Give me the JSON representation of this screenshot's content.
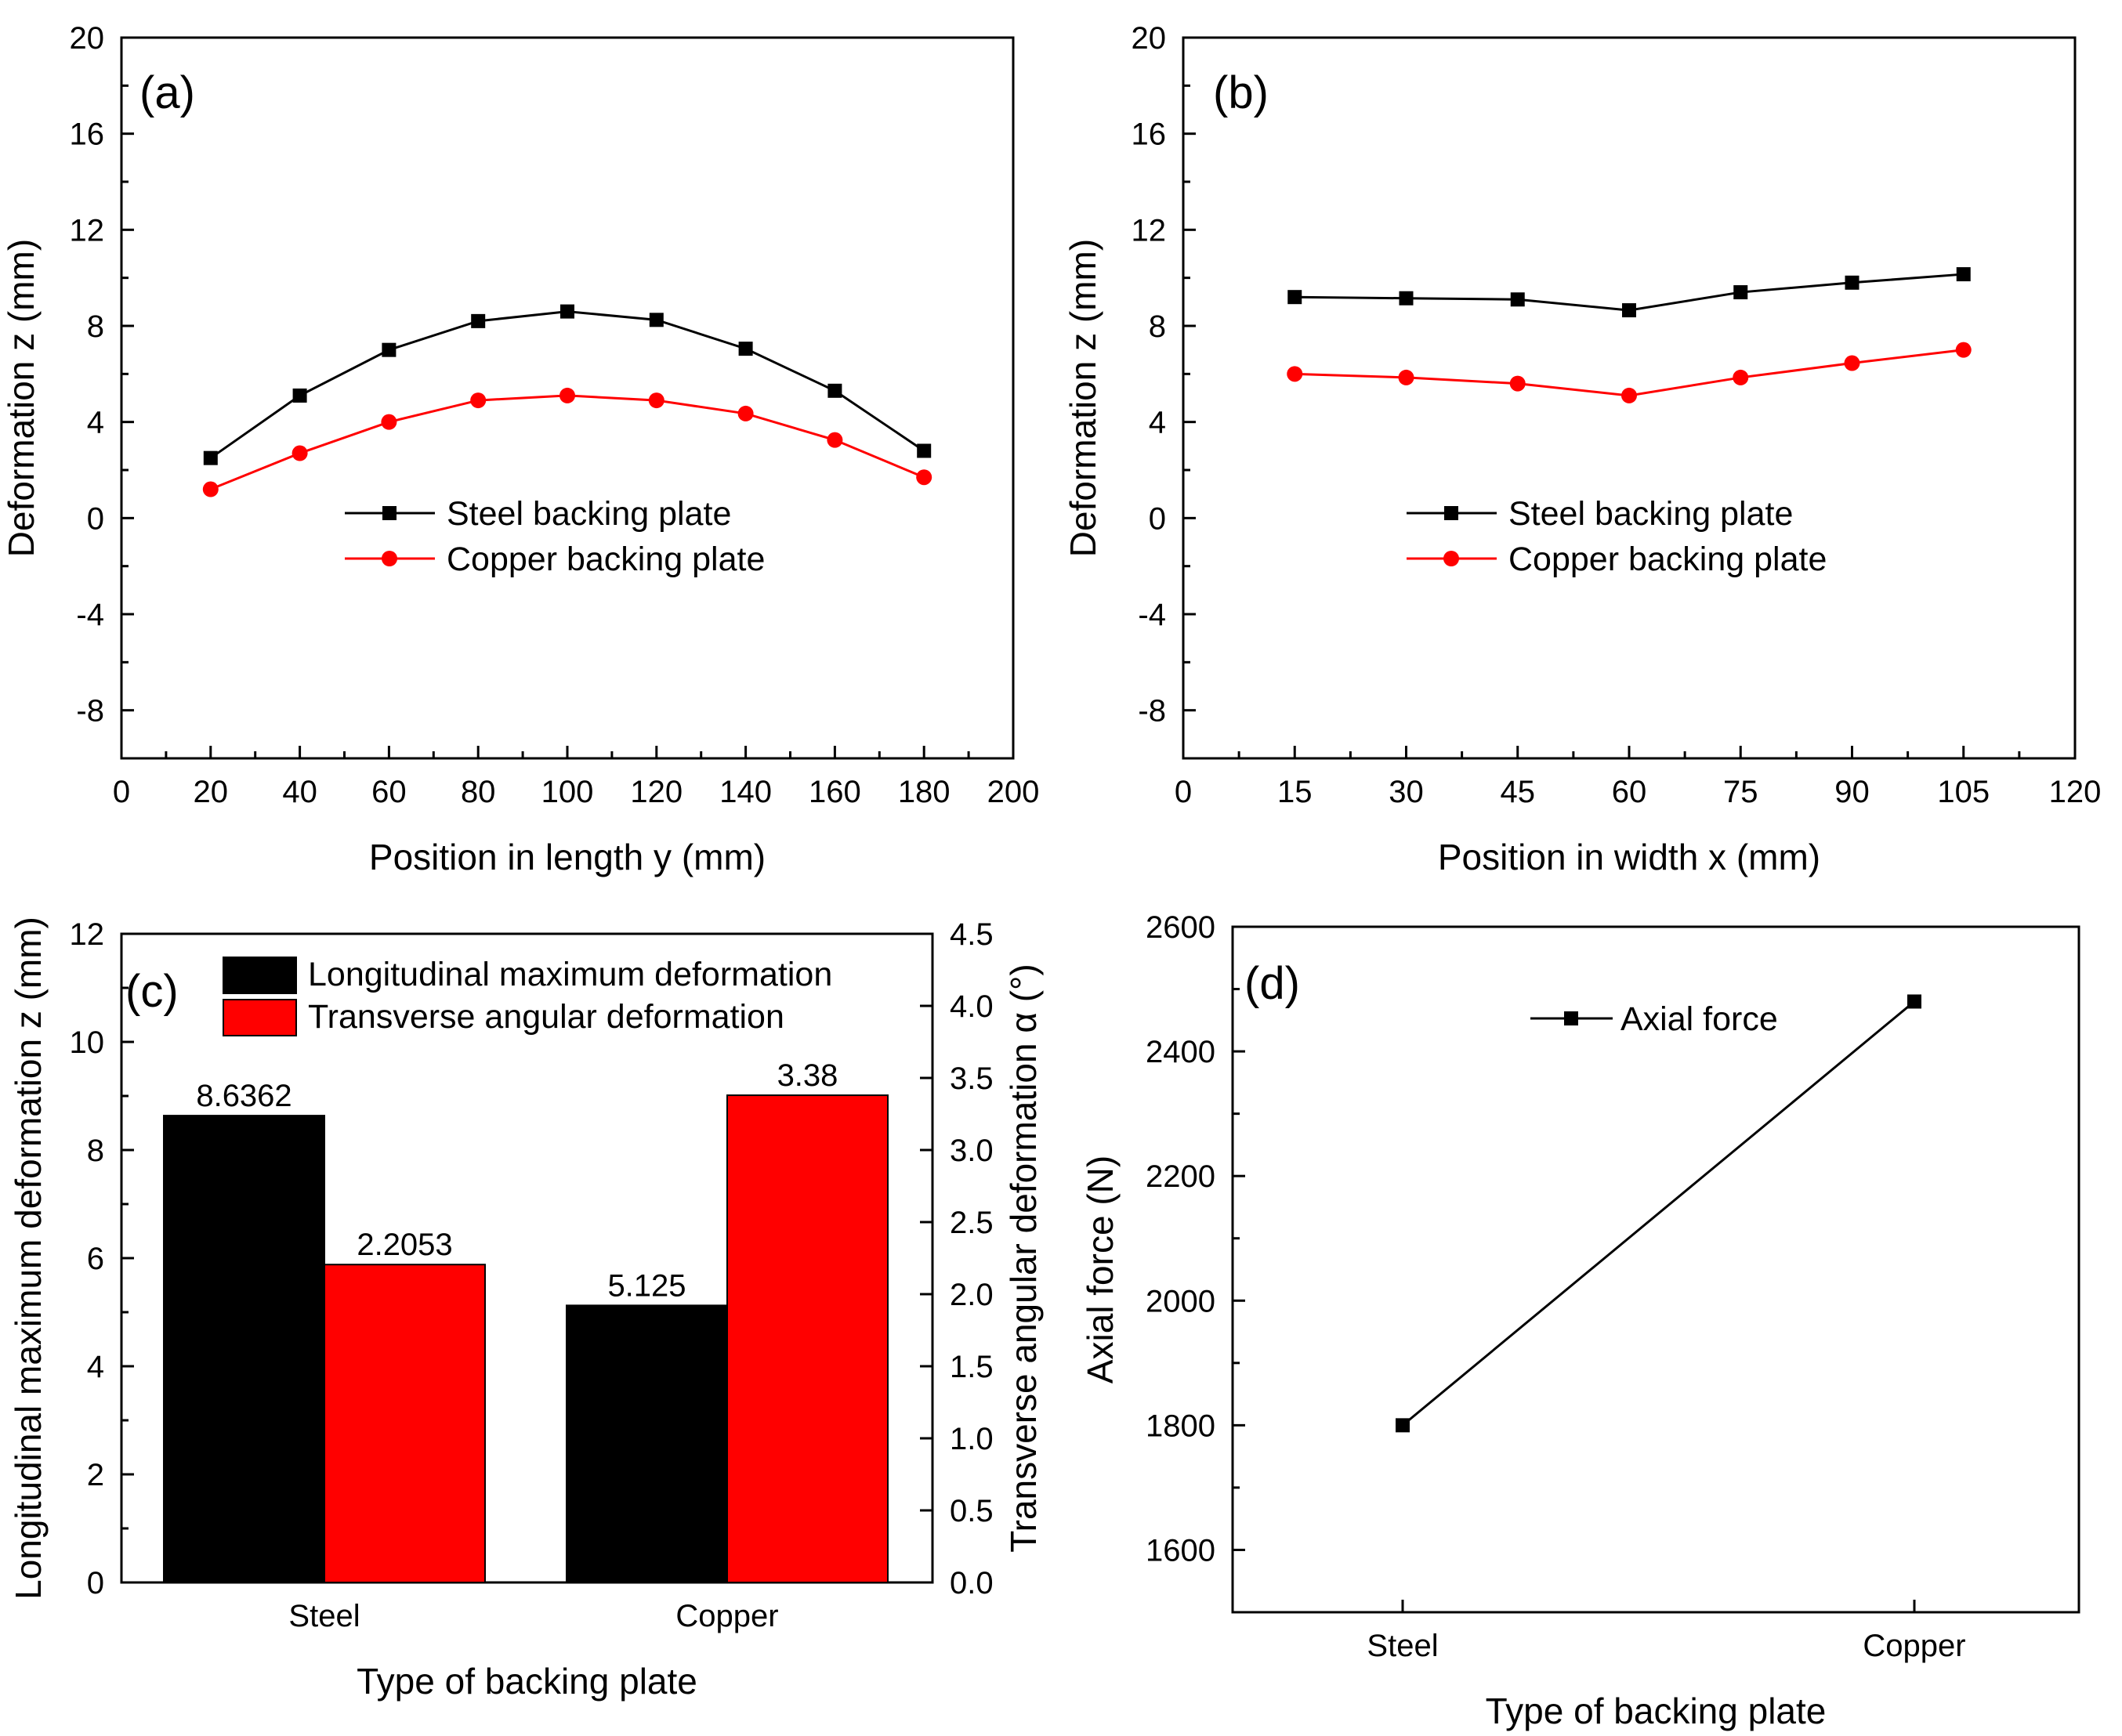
{
  "chart_data": [
    {
      "panel": "(a)",
      "type": "line",
      "xlabel": "Position in length y (mm)",
      "ylabel": "Deformation z (mm)",
      "xlim": [
        0,
        200
      ],
      "ylim": [
        -10,
        20
      ],
      "xticks": [
        0,
        20,
        40,
        60,
        80,
        100,
        120,
        140,
        160,
        180,
        200
      ],
      "yticks": [
        -8,
        -4,
        0,
        4,
        8,
        12,
        16,
        20
      ],
      "grid": false,
      "legend_position": "center",
      "series": [
        {
          "name": "Steel backing plate",
          "color": "#000000",
          "marker": "square",
          "x": [
            20,
            40,
            60,
            80,
            100,
            120,
            140,
            160,
            180
          ],
          "y": [
            2.5,
            5.1,
            7.0,
            8.2,
            8.6,
            8.25,
            7.05,
            5.3,
            2.8
          ]
        },
        {
          "name": "Copper backing plate",
          "color": "#ff0000",
          "marker": "circle",
          "x": [
            20,
            40,
            60,
            80,
            100,
            120,
            140,
            160,
            180
          ],
          "y": [
            1.2,
            2.7,
            4.0,
            4.9,
            5.1,
            4.9,
            4.35,
            3.25,
            1.7
          ]
        }
      ]
    },
    {
      "panel": "(b)",
      "type": "line",
      "xlabel": "Position in width x (mm)",
      "ylabel": "Deformation z (mm)",
      "xlim": [
        0,
        120
      ],
      "ylim": [
        -10,
        20
      ],
      "xticks": [
        0,
        15,
        30,
        45,
        60,
        75,
        90,
        105,
        120
      ],
      "yticks": [
        -8,
        -4,
        0,
        4,
        8,
        12,
        16,
        20
      ],
      "grid": false,
      "legend_position": "center",
      "series": [
        {
          "name": "Steel backing plate",
          "color": "#000000",
          "marker": "square",
          "x": [
            15,
            30,
            45,
            60,
            75,
            90,
            105
          ],
          "y": [
            9.2,
            9.15,
            9.1,
            8.65,
            9.4,
            9.8,
            10.15
          ]
        },
        {
          "name": "Copper backing plate",
          "color": "#ff0000",
          "marker": "circle",
          "x": [
            15,
            30,
            45,
            60,
            75,
            90,
            105
          ],
          "y": [
            6.0,
            5.85,
            5.6,
            5.1,
            5.85,
            6.45,
            7.0
          ]
        }
      ]
    },
    {
      "panel": "(c)",
      "type": "bar",
      "categories": [
        "Steel",
        "Copper"
      ],
      "xlabel": "Type of backing plate",
      "ylabel": "Longitudinal maximum deformation z (mm)",
      "y2label": "Transverse angular deformation α (°)",
      "ylim": [
        0,
        12
      ],
      "y2lim": [
        0,
        4.5
      ],
      "yticks": [
        0,
        2,
        4,
        6,
        8,
        10,
        12
      ],
      "y2ticks": [
        "0.0",
        "0.5",
        "1.0",
        "1.5",
        "2.0",
        "2.5",
        "3.0",
        "3.5",
        "4.0",
        "4.5"
      ],
      "grid": false,
      "legend_position": "top-left",
      "series": [
        {
          "name": "Longitudinal maximum deformation",
          "color": "#000000",
          "axis": "left",
          "values": [
            8.6362,
            5.125
          ],
          "labels": [
            "8.6362",
            "5.125"
          ]
        },
        {
          "name": "Transverse angular deformation",
          "color": "#ff0000",
          "axis": "right",
          "values": [
            2.2053,
            3.38
          ],
          "labels": [
            "2.2053",
            "3.38"
          ]
        }
      ]
    },
    {
      "panel": "(d)",
      "type": "line",
      "categories": [
        "Steel",
        "Copper"
      ],
      "xlabel": "Type of backing plate",
      "ylabel": "Axial force (N)",
      "ylim": [
        1500,
        2600
      ],
      "yticks": [
        1600,
        1800,
        2000,
        2200,
        2400,
        2600
      ],
      "grid": false,
      "legend_position": "top-center",
      "series": [
        {
          "name": "Axial force",
          "color": "#000000",
          "marker": "square",
          "values": [
            1800,
            2480
          ]
        }
      ]
    }
  ]
}
